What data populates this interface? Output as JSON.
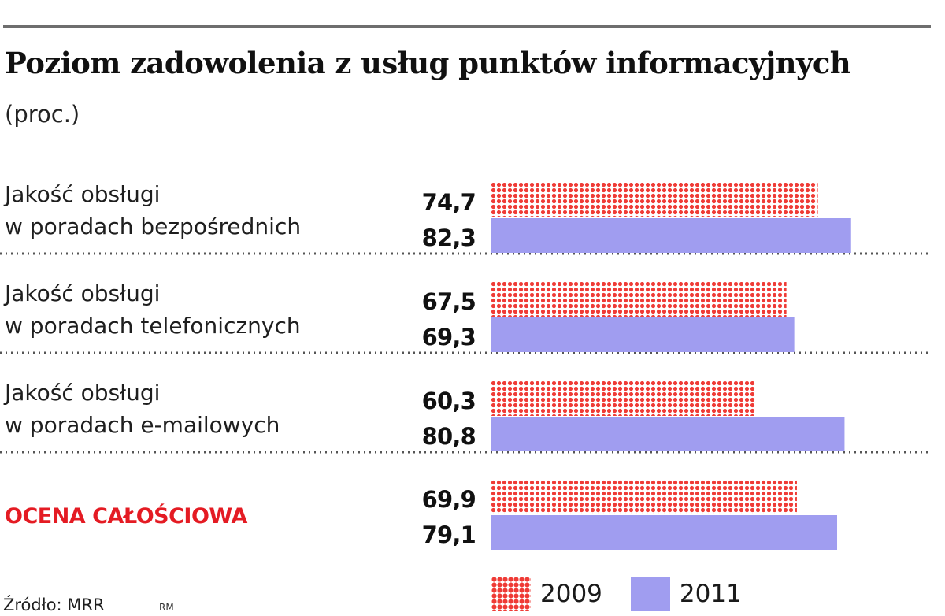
{
  "header": {
    "title": "Poziom zadowolenia z usług punktów informacyjnych",
    "subtitle": "(proc.)"
  },
  "footer": {
    "source": "Źródło: MRR",
    "credit": "RM"
  },
  "colors": {
    "series_2009": "#ef3b36",
    "series_2011": "#a09df0",
    "highlight": "#e41b23"
  },
  "chart_data": {
    "type": "bar",
    "orientation": "horizontal",
    "title": "Poziom zadowolenia z usług punktów informacyjnych",
    "subtitle": "(proc.)",
    "xlabel": "",
    "ylabel": "",
    "xlim": [
      0,
      100
    ],
    "grid": false,
    "legend": "bottom",
    "categories": [
      {
        "lines": [
          "Jakość obsługi",
          "w poradach bezpośrednich"
        ],
        "highlight": false
      },
      {
        "lines": [
          "Jakość obsługi",
          "w poradach telefonicznych"
        ],
        "highlight": false
      },
      {
        "lines": [
          "Jakość obsługi",
          "w poradach e-mailowych"
        ],
        "highlight": false
      },
      {
        "lines": [
          "OCENA CAŁOŚCIOWA"
        ],
        "highlight": true
      }
    ],
    "series": [
      {
        "name": "2009",
        "pattern": "dotted",
        "values": [
          74.7,
          67.5,
          60.3,
          69.9
        ],
        "labels": [
          "74,7",
          "67,5",
          "60,3",
          "69,9"
        ]
      },
      {
        "name": "2011",
        "pattern": "solid",
        "values": [
          82.3,
          69.3,
          80.8,
          79.1
        ],
        "labels": [
          "82,3",
          "69,3",
          "80,8",
          "79,1"
        ]
      }
    ]
  }
}
